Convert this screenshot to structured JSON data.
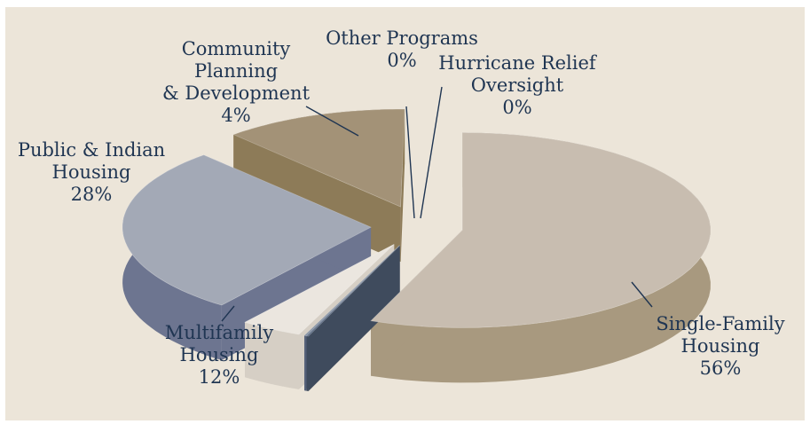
{
  "chart_data": {
    "type": "pie",
    "title": "",
    "style": "3d-exploded",
    "unit": "%",
    "slices": [
      {
        "label": "Single-Family Housing",
        "value": 56,
        "value_label": "56%",
        "color": "#c8bdb0",
        "side_color": "#a8997f",
        "label_lines": [
          "Single-Family",
          "Housing",
          "56%"
        ]
      },
      {
        "label": "Hurricane Relief Oversight",
        "value": 0,
        "value_label": "0%",
        "color": "#5a6a83",
        "side_color": "#3f4b5d",
        "label_lines": [
          "Hurricane Relief",
          "Oversight",
          "0%"
        ]
      },
      {
        "label": "Other Programs",
        "value": 0,
        "value_label": "0%",
        "color": "#7f8da0",
        "side_color": "#56627a",
        "label_lines": [
          "Other Programs",
          "0%"
        ]
      },
      {
        "label": "Community Planning & Development",
        "value": 4,
        "value_label": "4%",
        "color": "#ebe6df",
        "side_color": "#d6cfc5",
        "label_lines": [
          "Community",
          "Planning",
          "&  Development",
          "4%"
        ]
      },
      {
        "label": "Public & Indian Housing",
        "value": 28,
        "value_label": "28%",
        "color": "#a3a9b6",
        "side_color": "#6d7590",
        "label_lines": [
          "Public & Indian",
          "Housing",
          "28%"
        ]
      },
      {
        "label": "Multifamily Housing",
        "value": 12,
        "value_label": "12%",
        "color": "#a39277",
        "side_color": "#8d7b58",
        "label_lines": [
          "Multifamily",
          "Housing",
          "12%"
        ]
      }
    ],
    "background_color": "#ece5d9",
    "text_color": "#1f3552"
  }
}
